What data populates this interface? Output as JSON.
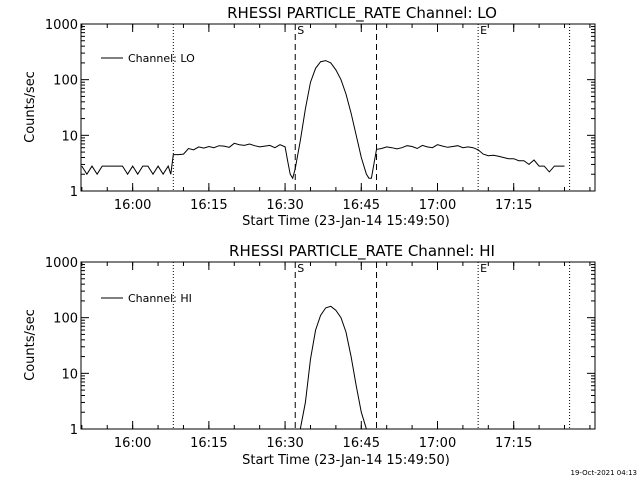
{
  "footer": {
    "timestamp": "19-Oct-2021 04:13"
  },
  "chart_data": [
    {
      "type": "line",
      "title": "RHESSI PARTICLE_RATE Channel: LO",
      "xlabel": "Start Time (23-Jan-14 15:49:50)",
      "ylabel": "Counts/sec",
      "y_scale": "log",
      "ylim": [
        1,
        1000
      ],
      "xlim": [
        "15:49:50",
        "17:31:00"
      ],
      "x_ticks": [
        "16:00",
        "16:15",
        "16:30",
        "16:45",
        "17:00",
        "17:15"
      ],
      "y_ticks": [
        "1",
        "10",
        "100",
        "1000"
      ],
      "legend": {
        "label": "Channel: LO",
        "position": "top-left"
      },
      "markers": [
        {
          "time": "16:08",
          "style": "dotted",
          "label": ""
        },
        {
          "time": "16:32",
          "style": "dashed",
          "label": "S"
        },
        {
          "time": "16:48",
          "style": "dashed",
          "label": ""
        },
        {
          "time": "17:08",
          "style": "dotted",
          "label": "E"
        },
        {
          "time": "17:26",
          "style": "dotted",
          "label": ""
        }
      ],
      "series": [
        {
          "name": "Channel: LO",
          "x": [
            "15:50",
            "15:51",
            "15:52",
            "15:53",
            "15:54",
            "15:55",
            "15:56",
            "15:57",
            "15:58",
            "15:59",
            "16:00",
            "16:01",
            "16:02",
            "16:03",
            "16:04",
            "16:05",
            "16:06",
            "16:07",
            "16:07:30",
            "16:08",
            "16:09",
            "16:10",
            "16:11",
            "16:12",
            "16:13",
            "16:14",
            "16:15",
            "16:16",
            "16:17",
            "16:18",
            "16:19",
            "16:20",
            "16:21",
            "16:22",
            "16:23",
            "16:24",
            "16:25",
            "16:26",
            "16:27",
            "16:28",
            "16:29",
            "16:30",
            "16:30:30",
            "16:31",
            "16:31:30",
            "16:32",
            "16:33",
            "16:34",
            "16:35",
            "16:36",
            "16:37",
            "16:38",
            "16:39",
            "16:40",
            "16:41",
            "16:42",
            "16:43",
            "16:44",
            "16:45",
            "16:46",
            "16:46:30",
            "16:47",
            "16:48",
            "16:49",
            "16:50",
            "16:51",
            "16:52",
            "16:53",
            "16:54",
            "16:55",
            "16:56",
            "16:57",
            "16:58",
            "16:59",
            "17:00",
            "17:01",
            "17:02",
            "17:03",
            "17:04",
            "17:05",
            "17:06",
            "17:07",
            "17:08",
            "17:09",
            "17:10",
            "17:11",
            "17:12",
            "17:13",
            "17:14",
            "17:15",
            "17:16",
            "17:17",
            "17:18",
            "17:19",
            "17:20",
            "17:21",
            "17:22",
            "17:23",
            "17:24",
            "17:25"
          ],
          "values": [
            2.8,
            2.0,
            2.8,
            2.0,
            2.8,
            2.8,
            2.8,
            2.8,
            2.8,
            2.0,
            2.8,
            2.0,
            2.8,
            2.8,
            2.0,
            2.8,
            2.0,
            2.8,
            2.0,
            4.5,
            4.5,
            4.6,
            5.8,
            5.5,
            6.2,
            5.9,
            6.3,
            6.0,
            6.5,
            6.4,
            6.1,
            7.2,
            6.8,
            6.6,
            7.0,
            6.5,
            6.2,
            6.4,
            6.6,
            6.0,
            6.8,
            6.2,
            3.5,
            2.0,
            1.7,
            2.5,
            8.0,
            30,
            90,
            160,
            210,
            220,
            200,
            150,
            100,
            55,
            25,
            10,
            4.0,
            2.0,
            1.7,
            1.7,
            5.6,
            5.8,
            6.2,
            6.0,
            5.7,
            6.0,
            6.5,
            6.3,
            5.8,
            6.6,
            6.2,
            6.0,
            6.8,
            6.4,
            6.1,
            6.3,
            6.5,
            6.0,
            6.2,
            6.0,
            5.5,
            4.6,
            4.3,
            4.4,
            4.2,
            4.0,
            3.8,
            3.8,
            3.5,
            3.5,
            3.0,
            3.6,
            2.8,
            2.8,
            2.2,
            2.8,
            2.8,
            2.8
          ]
        }
      ]
    },
    {
      "type": "line",
      "title": "RHESSI PARTICLE_RATE Channel: HI",
      "xlabel": "Start Time (23-Jan-14 15:49:50)",
      "ylabel": "Counts/sec",
      "y_scale": "log",
      "ylim": [
        1,
        1000
      ],
      "xlim": [
        "15:49:50",
        "17:31:00"
      ],
      "x_ticks": [
        "16:00",
        "16:15",
        "16:30",
        "16:45",
        "17:00",
        "17:15"
      ],
      "y_ticks": [
        "1",
        "10",
        "100",
        "1000"
      ],
      "legend": {
        "label": "Channel: HI",
        "position": "top-left"
      },
      "markers": [
        {
          "time": "16:08",
          "style": "dotted",
          "label": ""
        },
        {
          "time": "16:32",
          "style": "dashed",
          "label": "S"
        },
        {
          "time": "16:48",
          "style": "dashed",
          "label": ""
        },
        {
          "time": "17:08",
          "style": "dotted",
          "label": "E"
        },
        {
          "time": "17:26",
          "style": "dotted",
          "label": ""
        }
      ],
      "series": [
        {
          "name": "Channel: HI",
          "x": [
            "16:33",
            "16:34",
            "16:35",
            "16:36",
            "16:37",
            "16:38",
            "16:39",
            "16:40",
            "16:41",
            "16:42",
            "16:43",
            "16:44",
            "16:45",
            "16:46"
          ],
          "values": [
            1.0,
            3.0,
            18,
            60,
            110,
            150,
            160,
            135,
            100,
            55,
            20,
            6.0,
            2.0,
            1.0
          ]
        }
      ]
    }
  ]
}
